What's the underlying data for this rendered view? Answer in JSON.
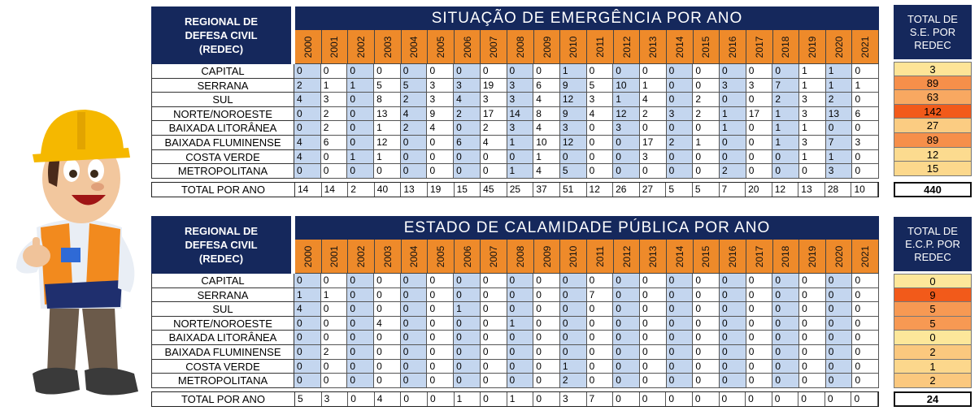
{
  "years": [
    "2000",
    "2001",
    "2002",
    "2003",
    "2004",
    "2005",
    "2006",
    "2007",
    "2008",
    "2009",
    "2010",
    "2011",
    "2012",
    "2013",
    "2014",
    "2015",
    "2016",
    "2017",
    "2018",
    "2019",
    "2020",
    "2021"
  ],
  "se": {
    "header": "REGIONAL DE\nDEFESA CIVIL\n(REDEC)",
    "title": "SITUAÇÃO DE EMERGÊNCIA POR ANO",
    "rows": [
      {
        "label": "CAPITAL",
        "values": [
          "0",
          "0",
          "0",
          "0",
          "0",
          "0",
          "0",
          "0",
          "0",
          "0",
          "1",
          "0",
          "0",
          "0",
          "0",
          "0",
          "0",
          "0",
          "0",
          "1",
          "1",
          "0"
        ]
      },
      {
        "label": "SERRANA",
        "values": [
          "2",
          "1",
          "1",
          "5",
          "5",
          "3",
          "3",
          "19",
          "3",
          "6",
          "9",
          "5",
          "10",
          "1",
          "0",
          "0",
          "3",
          "3",
          "7",
          "1",
          "1",
          "1"
        ]
      },
      {
        "label": "SUL",
        "values": [
          "4",
          "3",
          "0",
          "8",
          "2",
          "3",
          "4",
          "3",
          "3",
          "4",
          "12",
          "3",
          "1",
          "4",
          "0",
          "2",
          "0",
          "0",
          "2",
          "3",
          "2",
          "0"
        ]
      },
      {
        "label": "NORTE/NOROESTE",
        "values": [
          "0",
          "2",
          "0",
          "13",
          "4",
          "9",
          "2",
          "17",
          "14",
          "8",
          "9",
          "4",
          "12",
          "2",
          "3",
          "2",
          "1",
          "17",
          "1",
          "3",
          "13",
          "6"
        ]
      },
      {
        "label": "BAIXADA LITORÂNEA",
        "values": [
          "0",
          "2",
          "0",
          "1",
          "2",
          "4",
          "0",
          "2",
          "3",
          "4",
          "3",
          "0",
          "3",
          "0",
          "0",
          "0",
          "1",
          "0",
          "1",
          "1",
          "0",
          "0"
        ]
      },
      {
        "label": "BAIXADA FLUMINENSE",
        "values": [
          "4",
          "6",
          "0",
          "12",
          "0",
          "0",
          "6",
          "4",
          "1",
          "10",
          "12",
          "0",
          "0",
          "17",
          "2",
          "1",
          "0",
          "0",
          "1",
          "3",
          "7",
          "3"
        ]
      },
      {
        "label": "COSTA VERDE",
        "values": [
          "4",
          "0",
          "1",
          "1",
          "0",
          "0",
          "0",
          "0",
          "0",
          "1",
          "0",
          "0",
          "0",
          "3",
          "0",
          "0",
          "0",
          "0",
          "0",
          "1",
          "1",
          "0"
        ]
      },
      {
        "label": "METROPOLITANA",
        "values": [
          "0",
          "0",
          "0",
          "0",
          "0",
          "0",
          "0",
          "0",
          "1",
          "4",
          "5",
          "0",
          "0",
          "0",
          "0",
          "0",
          "2",
          "0",
          "0",
          "0",
          "3",
          "0"
        ]
      }
    ],
    "total_label": "TOTAL POR ANO",
    "totals": [
      "14",
      "14",
      "2",
      "40",
      "13",
      "19",
      "15",
      "45",
      "25",
      "37",
      "51",
      "12",
      "26",
      "27",
      "5",
      "5",
      "7",
      "20",
      "12",
      "13",
      "28",
      "10"
    ],
    "side_header": "TOTAL DE\nS.E. POR\nREDEC",
    "side_values": [
      "3",
      "89",
      "63",
      "142",
      "27",
      "89",
      "12",
      "15"
    ],
    "side_total": "440"
  },
  "ecp": {
    "header": "REGIONAL DE\nDEFESA CIVIL\n(REDEC)",
    "title": "ESTADO DE CALAMIDADE PÚBLICA POR ANO",
    "rows": [
      {
        "label": "CAPITAL",
        "values": [
          "0",
          "0",
          "0",
          "0",
          "0",
          "0",
          "0",
          "0",
          "0",
          "0",
          "0",
          "0",
          "0",
          "0",
          "0",
          "0",
          "0",
          "0",
          "0",
          "0",
          "0",
          "0"
        ]
      },
      {
        "label": "SERRANA",
        "values": [
          "1",
          "1",
          "0",
          "0",
          "0",
          "0",
          "0",
          "0",
          "0",
          "0",
          "0",
          "7",
          "0",
          "0",
          "0",
          "0",
          "0",
          "0",
          "0",
          "0",
          "0",
          "0"
        ]
      },
      {
        "label": "SUL",
        "values": [
          "4",
          "0",
          "0",
          "0",
          "0",
          "0",
          "1",
          "0",
          "0",
          "0",
          "0",
          "0",
          "0",
          "0",
          "0",
          "0",
          "0",
          "0",
          "0",
          "0",
          "0",
          "0"
        ]
      },
      {
        "label": "NORTE/NOROESTE",
        "values": [
          "0",
          "0",
          "0",
          "4",
          "0",
          "0",
          "0",
          "0",
          "1",
          "0",
          "0",
          "0",
          "0",
          "0",
          "0",
          "0",
          "0",
          "0",
          "0",
          "0",
          "0",
          "0"
        ]
      },
      {
        "label": "BAIXADA LITORÂNEA",
        "values": [
          "0",
          "0",
          "0",
          "0",
          "0",
          "0",
          "0",
          "0",
          "0",
          "0",
          "0",
          "0",
          "0",
          "0",
          "0",
          "0",
          "0",
          "0",
          "0",
          "0",
          "0",
          "0"
        ]
      },
      {
        "label": "BAIXADA FLUMINENSE",
        "values": [
          "0",
          "2",
          "0",
          "0",
          "0",
          "0",
          "0",
          "0",
          "0",
          "0",
          "0",
          "0",
          "0",
          "0",
          "0",
          "0",
          "0",
          "0",
          "0",
          "0",
          "0",
          "0"
        ]
      },
      {
        "label": "COSTA VERDE",
        "values": [
          "0",
          "0",
          "0",
          "0",
          "0",
          "0",
          "0",
          "0",
          "0",
          "0",
          "1",
          "0",
          "0",
          "0",
          "0",
          "0",
          "0",
          "0",
          "0",
          "0",
          "0",
          "0"
        ]
      },
      {
        "label": "METROPOLITANA",
        "values": [
          "0",
          "0",
          "0",
          "0",
          "0",
          "0",
          "0",
          "0",
          "0",
          "0",
          "2",
          "0",
          "0",
          "0",
          "0",
          "0",
          "0",
          "0",
          "0",
          "0",
          "0",
          "0"
        ]
      }
    ],
    "total_label": "TOTAL POR ANO",
    "totals": [
      "5",
      "3",
      "0",
      "4",
      "0",
      "0",
      "1",
      "0",
      "1",
      "0",
      "3",
      "7",
      "0",
      "0",
      "0",
      "0",
      "0",
      "0",
      "0",
      "0",
      "0",
      "0"
    ],
    "side_header": "TOTAL DE\nE.C.P. POR\nREDEC",
    "side_values": [
      "0",
      "9",
      "5",
      "5",
      "0",
      "2",
      "1",
      "2"
    ],
    "side_total": "24"
  },
  "colors": {
    "navy": "#15285c",
    "year_orange": "#ee8a2a",
    "cell_blue": "#c4d6ef",
    "heat_low": "#fde79a",
    "heat_high": "#f25a1a"
  },
  "icons": {
    "mascot": "civil-defense-worker-mascot"
  }
}
